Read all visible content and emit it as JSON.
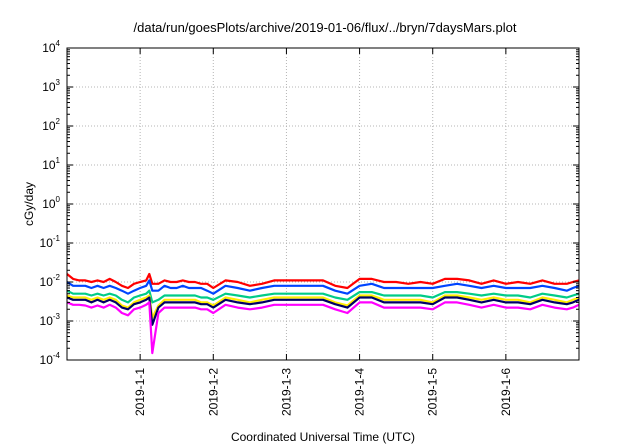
{
  "chart_data": {
    "type": "line",
    "title": "/data/run/goesPlots/archive/2019-01-06/flux/../bryn/7daysMars.plot",
    "xlabel": "Coordinated Universal Time (UTC)",
    "ylabel": "cGy/day",
    "x_range": [
      "2018-12-31 00:00",
      "2019-01-07 00:00"
    ],
    "y_range": [
      0.0001,
      10000
    ],
    "y_scale": "log",
    "grid": true,
    "legend": "none",
    "x_ticks": [
      {
        "label": "2019-1-1",
        "value": "2019-01-01 00:00"
      },
      {
        "label": "2019-1-2",
        "value": "2019-01-02 00:00"
      },
      {
        "label": "2019-1-3",
        "value": "2019-01-03 00:00"
      },
      {
        "label": "2019-1-4",
        "value": "2019-01-04 00:00"
      },
      {
        "label": "2019-1-5",
        "value": "2019-01-05 00:00"
      },
      {
        "label": "2019-1-6",
        "value": "2019-01-06 00:00"
      }
    ],
    "y_ticks": [
      {
        "base": "10",
        "exp": "-4",
        "value": 0.0001
      },
      {
        "base": "10",
        "exp": "-3",
        "value": 0.001
      },
      {
        "base": "10",
        "exp": "-2",
        "value": 0.01
      },
      {
        "base": "10",
        "exp": "-1",
        "value": 0.1
      },
      {
        "base": "10",
        "exp": "0",
        "value": 1
      },
      {
        "base": "10",
        "exp": "1",
        "value": 10
      },
      {
        "base": "10",
        "exp": "2",
        "value": 100
      },
      {
        "base": "10",
        "exp": "3",
        "value": 1000
      },
      {
        "base": "10",
        "exp": "4",
        "value": 10000
      }
    ],
    "x_times": [
      "2018-12-31 00:00",
      "2018-12-31 02:00",
      "2018-12-31 04:00",
      "2018-12-31 06:00",
      "2018-12-31 08:00",
      "2018-12-31 10:00",
      "2018-12-31 12:00",
      "2018-12-31 14:00",
      "2018-12-31 16:00",
      "2018-12-31 18:00",
      "2018-12-31 20:00",
      "2018-12-31 22:00",
      "2019-01-01 00:00",
      "2019-01-01 02:00",
      "2019-01-01 03:00",
      "2019-01-01 04:00",
      "2019-01-01 06:00",
      "2019-01-01 08:00",
      "2019-01-01 10:00",
      "2019-01-01 12:00",
      "2019-01-01 14:00",
      "2019-01-01 16:00",
      "2019-01-01 18:00",
      "2019-01-01 20:00",
      "2019-01-01 22:00",
      "2019-01-02 00:00",
      "2019-01-02 04:00",
      "2019-01-02 08:00",
      "2019-01-02 12:00",
      "2019-01-02 16:00",
      "2019-01-02 20:00",
      "2019-01-03 00:00",
      "2019-01-03 04:00",
      "2019-01-03 08:00",
      "2019-01-03 12:00",
      "2019-01-03 16:00",
      "2019-01-03 20:00",
      "2019-01-04 00:00",
      "2019-01-04 04:00",
      "2019-01-04 08:00",
      "2019-01-04 12:00",
      "2019-01-04 16:00",
      "2019-01-04 20:00",
      "2019-01-05 00:00",
      "2019-01-05 04:00",
      "2019-01-05 08:00",
      "2019-01-05 12:00",
      "2019-01-05 16:00",
      "2019-01-05 20:00",
      "2019-01-06 00:00",
      "2019-01-06 04:00",
      "2019-01-06 08:00",
      "2019-01-06 12:00",
      "2019-01-06 16:00",
      "2019-01-06 20:00",
      "2019-01-06 22:00",
      "2019-01-07 00:00"
    ],
    "series": [
      {
        "color": "#ff0000",
        "values": [
          0.016,
          0.012,
          0.011,
          0.011,
          0.01,
          0.011,
          0.01,
          0.012,
          0.01,
          0.008,
          0.007,
          0.009,
          0.01,
          0.011,
          0.016,
          0.009,
          0.009,
          0.011,
          0.01,
          0.01,
          0.011,
          0.01,
          0.01,
          0.009,
          0.009,
          0.007,
          0.011,
          0.01,
          0.008,
          0.009,
          0.011,
          0.011,
          0.011,
          0.011,
          0.011,
          0.008,
          0.007,
          0.012,
          0.012,
          0.01,
          0.01,
          0.009,
          0.01,
          0.009,
          0.012,
          0.012,
          0.011,
          0.009,
          0.011,
          0.009,
          0.01,
          0.009,
          0.011,
          0.009,
          0.009,
          0.01,
          0.011
        ]
      },
      {
        "color": "#0044ff",
        "values": [
          0.01,
          0.008,
          0.008,
          0.008,
          0.007,
          0.008,
          0.007,
          0.008,
          0.007,
          0.006,
          0.005,
          0.006,
          0.007,
          0.008,
          0.011,
          0.006,
          0.006,
          0.008,
          0.007,
          0.007,
          0.008,
          0.007,
          0.007,
          0.007,
          0.006,
          0.005,
          0.008,
          0.007,
          0.006,
          0.007,
          0.008,
          0.008,
          0.008,
          0.008,
          0.008,
          0.006,
          0.005,
          0.008,
          0.009,
          0.007,
          0.007,
          0.007,
          0.007,
          0.007,
          0.008,
          0.009,
          0.008,
          0.007,
          0.008,
          0.007,
          0.007,
          0.007,
          0.008,
          0.007,
          0.006,
          0.007,
          0.008
        ]
      },
      {
        "color": "#00cc88",
        "values": [
          0.006,
          0.005,
          0.005,
          0.005,
          0.0045,
          0.005,
          0.0045,
          0.005,
          0.0045,
          0.0035,
          0.003,
          0.004,
          0.0045,
          0.005,
          0.006,
          0.003,
          0.0035,
          0.0045,
          0.0045,
          0.0045,
          0.0045,
          0.0045,
          0.0045,
          0.004,
          0.004,
          0.0035,
          0.005,
          0.0045,
          0.004,
          0.0045,
          0.005,
          0.005,
          0.005,
          0.005,
          0.005,
          0.004,
          0.0035,
          0.0055,
          0.0055,
          0.0045,
          0.0045,
          0.0045,
          0.0045,
          0.004,
          0.0055,
          0.0055,
          0.005,
          0.0045,
          0.005,
          0.0045,
          0.0045,
          0.004,
          0.005,
          0.0045,
          0.004,
          0.0045,
          0.005
        ]
      },
      {
        "color": "#ffee00",
        "values": [
          0.0045,
          0.004,
          0.004,
          0.004,
          0.0035,
          0.004,
          0.0035,
          0.004,
          0.0035,
          0.0025,
          0.0022,
          0.003,
          0.0035,
          0.004,
          0.0045,
          0.0012,
          0.0025,
          0.0035,
          0.0035,
          0.0035,
          0.0035,
          0.0035,
          0.0035,
          0.003,
          0.003,
          0.0025,
          0.004,
          0.0035,
          0.003,
          0.0035,
          0.004,
          0.004,
          0.004,
          0.004,
          0.004,
          0.003,
          0.0025,
          0.0045,
          0.0045,
          0.0035,
          0.0035,
          0.0035,
          0.0035,
          0.003,
          0.0045,
          0.0045,
          0.004,
          0.0035,
          0.004,
          0.0035,
          0.0035,
          0.003,
          0.004,
          0.0035,
          0.003,
          0.0035,
          0.004
        ]
      },
      {
        "color": "#000066",
        "values": [
          0.004,
          0.0035,
          0.0035,
          0.0035,
          0.003,
          0.0035,
          0.003,
          0.0035,
          0.003,
          0.0022,
          0.002,
          0.0027,
          0.003,
          0.0035,
          0.004,
          0.0008,
          0.0022,
          0.003,
          0.003,
          0.003,
          0.003,
          0.003,
          0.003,
          0.0027,
          0.0027,
          0.0022,
          0.0035,
          0.003,
          0.0027,
          0.003,
          0.0035,
          0.0035,
          0.0035,
          0.0035,
          0.0035,
          0.0027,
          0.0022,
          0.004,
          0.004,
          0.003,
          0.003,
          0.003,
          0.003,
          0.0027,
          0.004,
          0.004,
          0.0035,
          0.003,
          0.0035,
          0.003,
          0.003,
          0.0027,
          0.0035,
          0.003,
          0.0027,
          0.003,
          0.0035
        ]
      },
      {
        "color": "#ff00ff",
        "values": [
          0.003,
          0.0026,
          0.0026,
          0.0025,
          0.0022,
          0.0025,
          0.0022,
          0.0026,
          0.0022,
          0.0016,
          0.0014,
          0.002,
          0.0022,
          0.0026,
          0.003,
          0.00015,
          0.0016,
          0.0022,
          0.0022,
          0.0022,
          0.0022,
          0.0022,
          0.0022,
          0.002,
          0.002,
          0.0016,
          0.0026,
          0.0022,
          0.002,
          0.0022,
          0.0026,
          0.0026,
          0.0026,
          0.0026,
          0.0026,
          0.002,
          0.0016,
          0.003,
          0.003,
          0.0022,
          0.0022,
          0.0022,
          0.0022,
          0.002,
          0.003,
          0.003,
          0.0026,
          0.0022,
          0.0026,
          0.0022,
          0.0022,
          0.002,
          0.0026,
          0.0022,
          0.002,
          0.0022,
          0.0026
        ]
      }
    ]
  }
}
